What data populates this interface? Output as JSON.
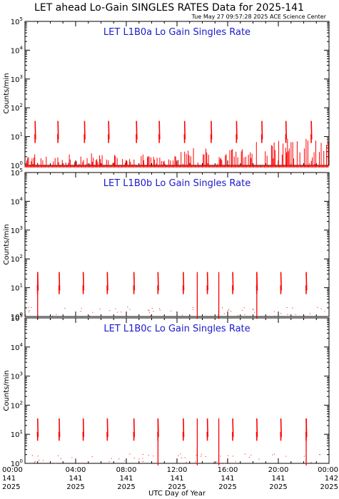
{
  "title": "LET ahead Lo-Gain SINGLES RATES Data for 2025-141",
  "timestamp": "Tue May 27 09:57:28 2025 ACE Science Center",
  "xlabel": "UTC Day of Year",
  "ylabel": "Counts/min",
  "colors": {
    "data": "#ff0000",
    "panel_title": "#1a1acc",
    "axes": "#000000"
  },
  "x_ticks": [
    {
      "hour": 0,
      "time": "00:00",
      "doy": "141",
      "year": "2025"
    },
    {
      "hour": 4,
      "time": "04:00",
      "doy": "141",
      "year": "2025"
    },
    {
      "hour": 8,
      "time": "08:00",
      "doy": "141",
      "year": "2025"
    },
    {
      "hour": 12,
      "time": "12:00",
      "doy": "141",
      "year": "2025"
    },
    {
      "hour": 16,
      "time": "16:00",
      "doy": "141",
      "year": "2025"
    },
    {
      "hour": 20,
      "time": "20:00",
      "doy": "141",
      "year": "2025"
    },
    {
      "hour": 24,
      "time": "00:00",
      "doy": "142",
      "year": "2025"
    }
  ],
  "y_ticks": [
    {
      "exp": 0,
      "base": "10",
      "sup": "0"
    },
    {
      "exp": 1,
      "base": "10",
      "sup": "1"
    },
    {
      "exp": 2,
      "base": "10",
      "sup": "2"
    },
    {
      "exp": 3,
      "base": "10",
      "sup": "3"
    },
    {
      "exp": 4,
      "base": "10",
      "sup": "4"
    },
    {
      "exp": 5,
      "base": "10",
      "sup": "5"
    }
  ],
  "chart_data": [
    {
      "type": "line",
      "title": "LET L1B0a Lo Gain Singles Rate",
      "xlim": [
        0,
        24
      ],
      "ylim": [
        1,
        100000
      ],
      "yscale": "log",
      "spike_hours": [
        0.8,
        2.6,
        4.7,
        6.6,
        8.8,
        10.6,
        12.6,
        14.7,
        16.7,
        18.7,
        20.6,
        22.6
      ],
      "spike_peak": 35,
      "baseline_low": 1,
      "baseline_high": 7
    },
    {
      "type": "line",
      "title": "LET L1B0b Lo Gain Singles Rate",
      "xlim": [
        0,
        24
      ],
      "ylim": [
        1,
        100000
      ],
      "yscale": "log",
      "spike_hours": [
        1.0,
        2.7,
        4.6,
        6.5,
        8.6,
        10.5,
        12.5,
        14.4,
        16.4,
        18.3,
        20.2,
        22.2
      ],
      "spike_peak": 35,
      "drop_hours": [
        1.0,
        13.6,
        15.3,
        18.3
      ]
    },
    {
      "type": "line",
      "title": "LET L1B0c Lo Gain Singles Rate",
      "xlim": [
        0,
        24
      ],
      "ylim": [
        1,
        100000
      ],
      "yscale": "log",
      "spike_hours": [
        1.0,
        2.7,
        4.6,
        6.5,
        8.6,
        10.5,
        12.5,
        14.4,
        16.4,
        18.3,
        20.2,
        22.2
      ],
      "spike_peak": 35,
      "drop_hours": [
        10.5,
        13.6,
        15.3,
        22.2
      ]
    }
  ]
}
